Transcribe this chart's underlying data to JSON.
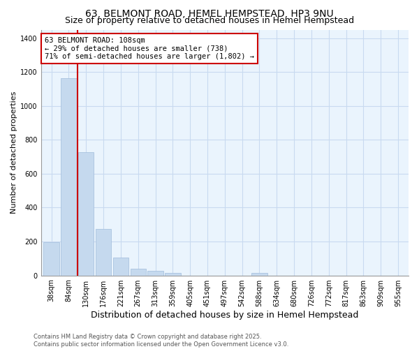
{
  "title": "63, BELMONT ROAD, HEMEL HEMPSTEAD, HP3 9NU",
  "subtitle": "Size of property relative to detached houses in Hemel Hempstead",
  "xlabel": "Distribution of detached houses by size in Hemel Hempstead",
  "ylabel": "Number of detached properties",
  "categories": [
    "38sqm",
    "84sqm",
    "130sqm",
    "176sqm",
    "221sqm",
    "267sqm",
    "313sqm",
    "359sqm",
    "405sqm",
    "451sqm",
    "497sqm",
    "542sqm",
    "588sqm",
    "634sqm",
    "680sqm",
    "726sqm",
    "772sqm",
    "817sqm",
    "863sqm",
    "909sqm",
    "955sqm"
  ],
  "values": [
    198,
    1163,
    728,
    275,
    107,
    40,
    28,
    14,
    0,
    0,
    0,
    0,
    14,
    0,
    0,
    0,
    0,
    0,
    0,
    0,
    0
  ],
  "bar_color": "#c5d9ee",
  "bar_edge_color": "#a0bbdb",
  "grid_color": "#c8daf0",
  "background_color": "#ffffff",
  "ax_background": "#eaf4fd",
  "vline_x": 1.5,
  "vline_color": "#cc0000",
  "annotation_text": "63 BELMONT ROAD: 108sqm\n← 29% of detached houses are smaller (738)\n71% of semi-detached houses are larger (1,802) →",
  "annotation_box_color": "#cc0000",
  "annotation_bg": "#ffffff",
  "ylim": [
    0,
    1450
  ],
  "yticks": [
    0,
    200,
    400,
    600,
    800,
    1000,
    1200,
    1400
  ],
  "footer": "Contains HM Land Registry data © Crown copyright and database right 2025.\nContains public sector information licensed under the Open Government Licence v3.0.",
  "title_fontsize": 10,
  "subtitle_fontsize": 9,
  "xlabel_fontsize": 9,
  "ylabel_fontsize": 8,
  "tick_fontsize": 7,
  "footer_fontsize": 6
}
